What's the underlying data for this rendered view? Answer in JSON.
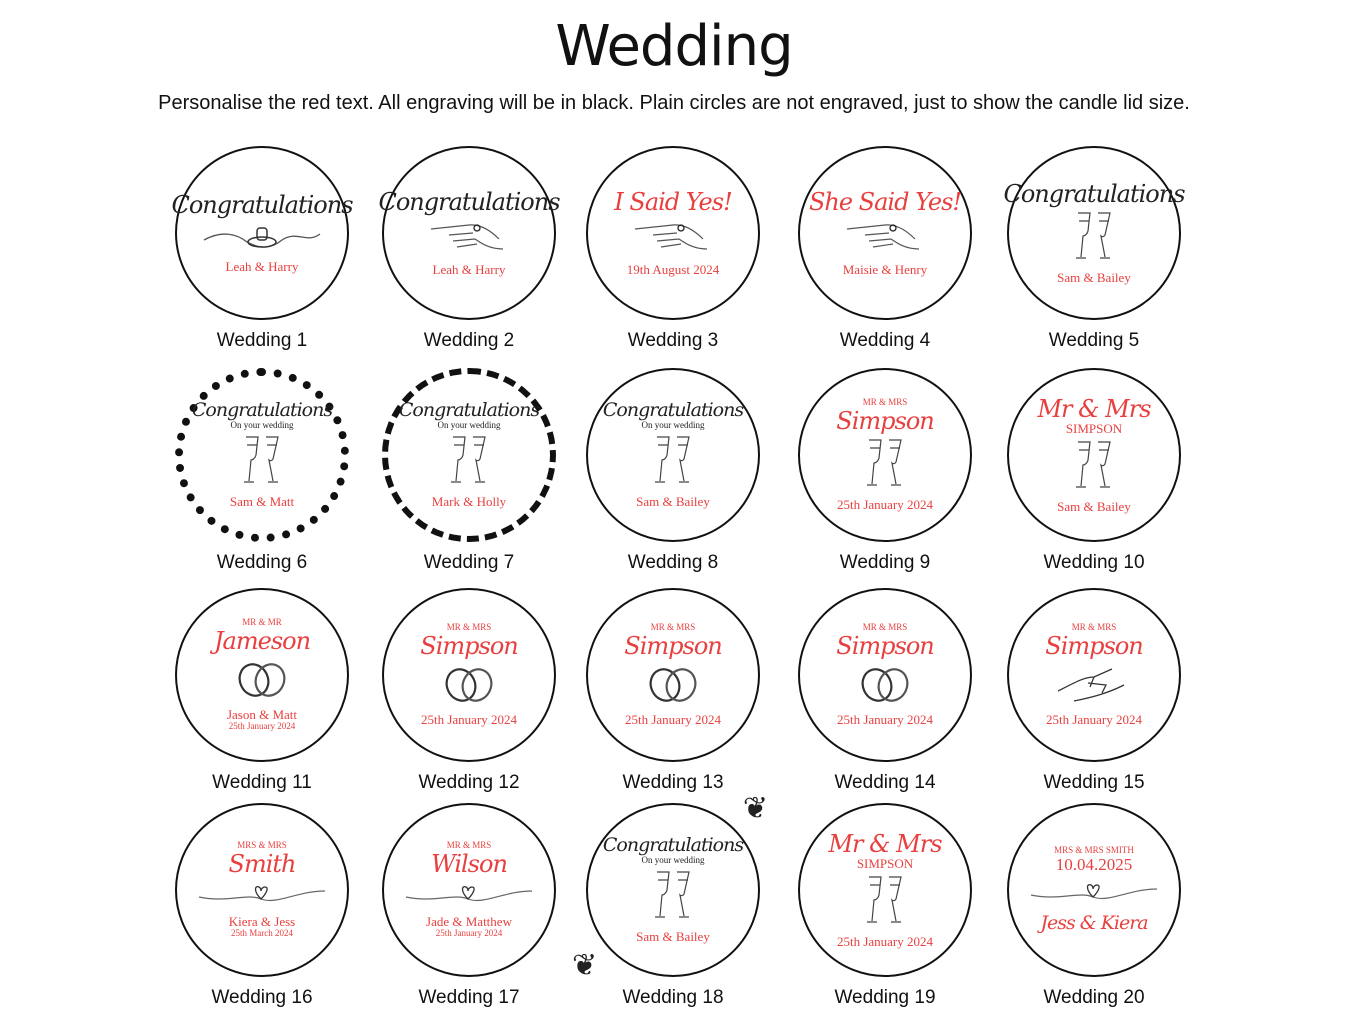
{
  "header": {
    "title": "Wedding",
    "subtitle": "Personalise the red text. All engraving will be in black. Plain circles are not engraved, just to show the candle lid size."
  },
  "colors": {
    "personalised": "#e8403f",
    "engraving": "#222222"
  },
  "designs": [
    {
      "label": "Wedding 1",
      "border": "plain",
      "top": [
        {
          "text": "Congratulations",
          "style": "script",
          "color": "black"
        }
      ],
      "icon": "ring-on-line-icon",
      "bottom": [
        {
          "text": "Leah & Harry",
          "style": "serif",
          "color": "red"
        }
      ]
    },
    {
      "label": "Wedding 2",
      "border": "plain",
      "top": [
        {
          "text": "Congratulations",
          "style": "script",
          "color": "black"
        }
      ],
      "icon": "hand-with-ring-icon",
      "bottom": [
        {
          "text": "Leah & Harry",
          "style": "serif",
          "color": "red"
        }
      ]
    },
    {
      "label": "Wedding 3",
      "border": "plain",
      "top": [
        {
          "text": "I Said Yes!",
          "style": "script",
          "color": "red"
        }
      ],
      "icon": "hand-with-ring-icon",
      "bottom": [
        {
          "text": "19th August 2024",
          "style": "serif",
          "color": "red"
        }
      ]
    },
    {
      "label": "Wedding 4",
      "border": "plain",
      "top": [
        {
          "text": "She Said Yes!",
          "style": "script",
          "color": "red"
        }
      ],
      "icon": "hand-with-ring-icon",
      "bottom": [
        {
          "text": "Maisie & Henry",
          "style": "serif",
          "color": "red"
        }
      ]
    },
    {
      "label": "Wedding 5",
      "border": "plain",
      "top": [
        {
          "text": "Congratulations",
          "style": "script",
          "color": "black"
        }
      ],
      "icon": "champagne-glasses-icon",
      "bottom": [
        {
          "text": "Sam & Bailey",
          "style": "serif",
          "color": "red"
        }
      ]
    },
    {
      "label": "Wedding 6",
      "border": "hearts",
      "top": [
        {
          "text": "Congratulations",
          "style": "script-sm",
          "color": "black"
        },
        {
          "text": "On your wedding",
          "style": "small",
          "color": "black"
        }
      ],
      "icon": "champagne-glasses-icon",
      "bottom": [
        {
          "text": "Sam & Matt",
          "style": "serif",
          "color": "red"
        }
      ]
    },
    {
      "label": "Wedding 7",
      "border": "chevrons",
      "top": [
        {
          "text": "Congratulations",
          "style": "script-sm",
          "color": "black"
        },
        {
          "text": "On your wedding",
          "style": "small",
          "color": "black"
        }
      ],
      "icon": "champagne-glasses-icon",
      "bottom": [
        {
          "text": "Mark & Holly",
          "style": "serif",
          "color": "red"
        }
      ]
    },
    {
      "label": "Wedding 8",
      "border": "plain",
      "top": [
        {
          "text": "Congratulations",
          "style": "script-sm",
          "color": "black"
        },
        {
          "text": "On your wedding",
          "style": "small",
          "color": "black"
        }
      ],
      "icon": "champagne-glasses-icon",
      "bottom": [
        {
          "text": "Sam & Bailey",
          "style": "serif",
          "color": "red"
        }
      ]
    },
    {
      "label": "Wedding 9",
      "border": "plain",
      "top": [
        {
          "text": "MR & MRS",
          "style": "small",
          "color": "red"
        },
        {
          "text": "Simpson",
          "style": "script",
          "color": "red"
        }
      ],
      "icon": "champagne-glasses-icon",
      "bottom": [
        {
          "text": "25th January 2024",
          "style": "serif",
          "color": "red"
        }
      ]
    },
    {
      "label": "Wedding 10",
      "border": "plain",
      "top": [
        {
          "text": "Mr & Mrs",
          "style": "script",
          "color": "red"
        },
        {
          "text": "SIMPSON",
          "style": "serif",
          "color": "red"
        }
      ],
      "icon": "champagne-glasses-icon",
      "bottom": [
        {
          "text": "Sam & Bailey",
          "style": "serif",
          "color": "red"
        }
      ]
    },
    {
      "label": "Wedding 11",
      "border": "plain",
      "top": [
        {
          "text": "MR & MR",
          "style": "small",
          "color": "red"
        },
        {
          "text": "Jameson",
          "style": "script",
          "color": "red"
        }
      ],
      "icon": "wedding-rings-icon",
      "bottom": [
        {
          "text": "Jason & Matt",
          "style": "serif",
          "color": "red"
        },
        {
          "text": "25th January 2024",
          "style": "small",
          "color": "red"
        }
      ]
    },
    {
      "label": "Wedding 12",
      "border": "plain",
      "top": [
        {
          "text": "MR & MRS",
          "style": "small",
          "color": "red"
        },
        {
          "text": "Simpson",
          "style": "script",
          "color": "red"
        }
      ],
      "icon": "wedding-rings-icon",
      "bottom": [
        {
          "text": "25th January 2024",
          "style": "serif",
          "color": "red"
        }
      ]
    },
    {
      "label": "Wedding 13",
      "border": "plain",
      "top": [
        {
          "text": "MR & MRS",
          "style": "small",
          "color": "red"
        },
        {
          "text": "Simpson",
          "style": "script",
          "color": "red"
        }
      ],
      "icon": "wedding-rings-icon",
      "bottom": [
        {
          "text": "25th January 2024",
          "style": "serif",
          "color": "red"
        }
      ]
    },
    {
      "label": "Wedding 14",
      "border": "plain",
      "top": [
        {
          "text": "MR & MRS",
          "style": "small",
          "color": "red"
        },
        {
          "text": "Simpson",
          "style": "script",
          "color": "red"
        }
      ],
      "icon": "wedding-rings-icon",
      "bottom": [
        {
          "text": "25th January 2024",
          "style": "serif",
          "color": "red"
        }
      ]
    },
    {
      "label": "Wedding 15",
      "border": "plain",
      "top": [
        {
          "text": "MR & MRS",
          "style": "small",
          "color": "red"
        },
        {
          "text": "Simpson",
          "style": "script",
          "color": "red"
        }
      ],
      "icon": "holding-hands-icon",
      "bottom": [
        {
          "text": "25th January 2024",
          "style": "serif",
          "color": "red"
        }
      ]
    },
    {
      "label": "Wedding 16",
      "border": "plain",
      "top": [
        {
          "text": "MRS & MRS",
          "style": "small",
          "color": "red"
        },
        {
          "text": "Smith",
          "style": "script",
          "color": "red"
        }
      ],
      "icon": "heart-line-icon",
      "bottom": [
        {
          "text": "Kiera & Jess",
          "style": "serif",
          "color": "red"
        },
        {
          "text": "25th March 2024",
          "style": "small",
          "color": "red"
        }
      ]
    },
    {
      "label": "Wedding 17",
      "border": "plain",
      "top": [
        {
          "text": "MR & MRS",
          "style": "small",
          "color": "red"
        },
        {
          "text": "Wilson",
          "style": "script",
          "color": "red"
        }
      ],
      "icon": "heart-line-icon",
      "bottom": [
        {
          "text": "Jade & Matthew",
          "style": "serif",
          "color": "red"
        },
        {
          "text": "25th January 2024",
          "style": "small",
          "color": "red"
        }
      ]
    },
    {
      "label": "Wedding 18",
      "border": "leaves",
      "top": [
        {
          "text": "Congratulations",
          "style": "script-sm",
          "color": "black"
        },
        {
          "text": "On your wedding",
          "style": "small",
          "color": "black"
        }
      ],
      "icon": "champagne-glasses-icon",
      "bottom": [
        {
          "text": "Sam & Bailey",
          "style": "serif",
          "color": "red"
        }
      ]
    },
    {
      "label": "Wedding 19",
      "border": "plain",
      "top": [
        {
          "text": "Mr & Mrs",
          "style": "script",
          "color": "red"
        },
        {
          "text": "SIMPSON",
          "style": "serif",
          "color": "red"
        }
      ],
      "icon": "champagne-glasses-icon",
      "bottom": [
        {
          "text": "25th January 2024",
          "style": "serif",
          "color": "red"
        }
      ]
    },
    {
      "label": "Wedding 20",
      "border": "plain",
      "top": [
        {
          "text": "MRS & MRS SMITH",
          "style": "small",
          "color": "red"
        },
        {
          "text": "10.04.2025",
          "style": "big",
          "color": "red"
        }
      ],
      "icon": "heart-line-icon",
      "bottom": [
        {
          "text": "Jess & Kiera",
          "style": "script-sm",
          "color": "red"
        }
      ]
    }
  ]
}
